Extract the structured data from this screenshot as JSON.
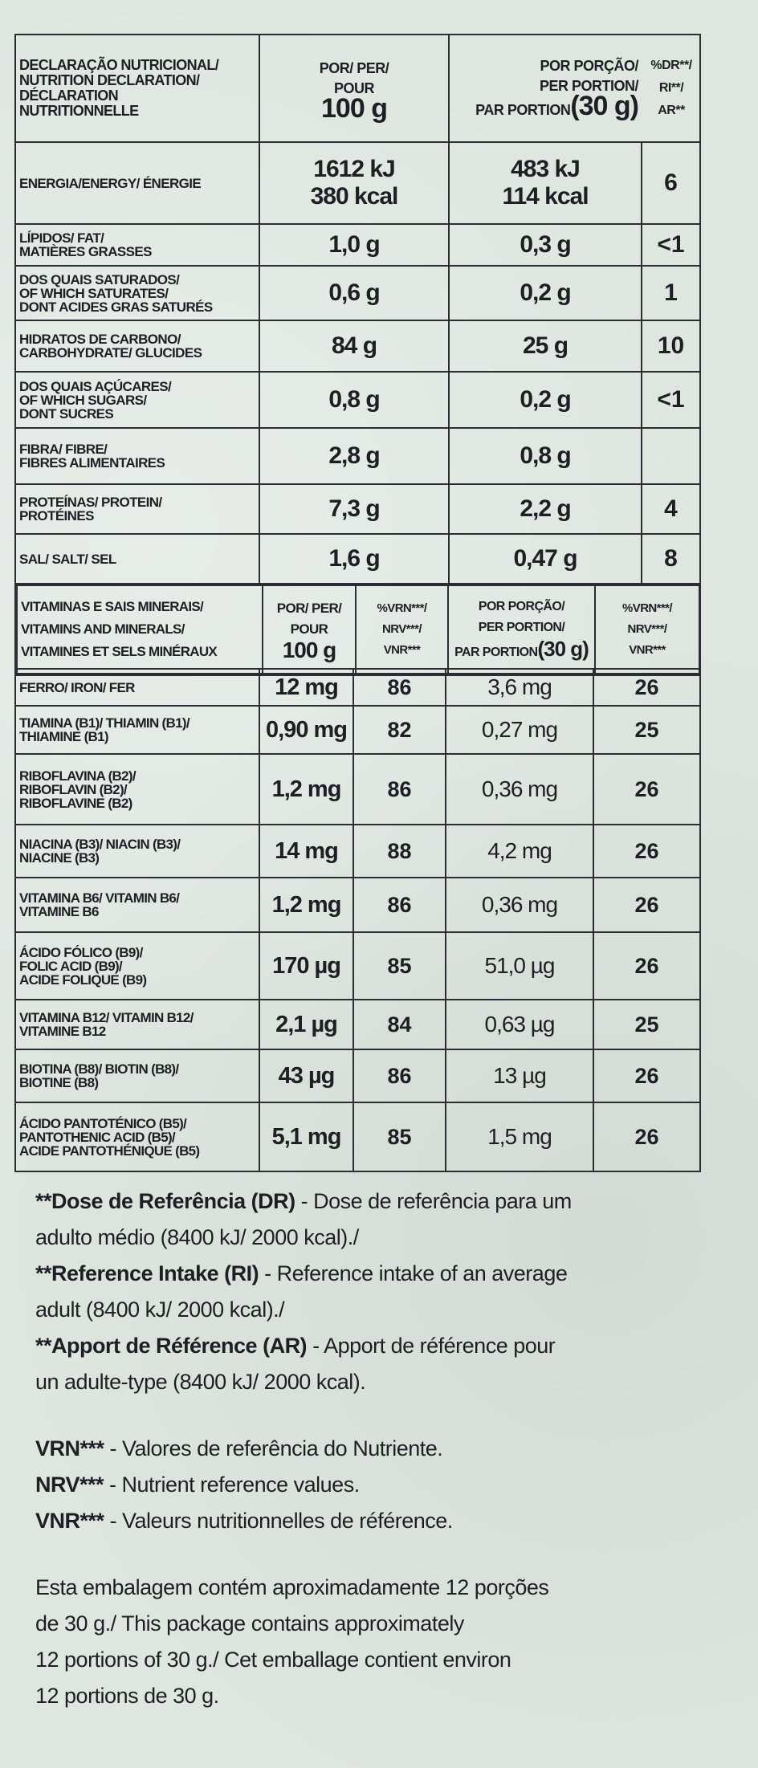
{
  "header": {
    "col1_lines": [
      "DECLARAÇÃO NUTRICIONAL/",
      "NUTRITION DECLARATION/",
      "DÉCLARATION",
      "NUTRITIONNELLE"
    ],
    "col2_lines": [
      "POR/ PER/",
      "POUR"
    ],
    "col2_qty": "100 g",
    "col3_lines": [
      "POR PORÇÃO/",
      "PER PORTION/"
    ],
    "col3_par": "PAR PORTION",
    "col3_qty": "(30 g)",
    "col4_lines": [
      "%DR**/",
      "RI**/",
      "AR**"
    ]
  },
  "rows": [
    {
      "name_lines": [
        "ENERGIA/ENERGY/ ÉNERGIE"
      ],
      "per100": [
        "1612 kJ",
        "380 kcal"
      ],
      "portion": [
        "483 kJ",
        "114 kcal"
      ],
      "pct": "6"
    },
    {
      "name_lines": [
        "LÍPIDOS/ FAT/",
        "MATIÈRES GRASSES"
      ],
      "per100": [
        "1,0 g"
      ],
      "portion": [
        "0,3 g"
      ],
      "pct": "<1"
    },
    {
      "name_lines": [
        "DOS QUAIS SATURADOS/",
        "OF WHICH SATURATES/",
        "DONT ACIDES GRAS SATURÉS"
      ],
      "per100": [
        "0,6 g"
      ],
      "portion": [
        "0,2 g"
      ],
      "pct": "1"
    },
    {
      "name_lines": [
        "HIDRATOS DE CARBONO/",
        "CARBOHYDRATE/ GLUCIDES"
      ],
      "per100": [
        "84 g"
      ],
      "portion": [
        "25 g"
      ],
      "pct": "10"
    },
    {
      "name_lines": [
        "DOS QUAIS AÇÚCARES/",
        "OF WHICH SUGARS/",
        "DONT SUCRES"
      ],
      "per100": [
        "0,8 g"
      ],
      "portion": [
        "0,2 g"
      ],
      "pct": "<1"
    },
    {
      "name_lines": [
        "FIBRA/ FIBRE/",
        "FIBRES ALIMENTAIRES"
      ],
      "per100": [
        "2,8 g"
      ],
      "portion": [
        "0,8 g"
      ],
      "pct": ""
    },
    {
      "name_lines": [
        "PROTEÍNAS/ PROTEIN/",
        "PROTÉINES"
      ],
      "per100": [
        "7,3 g"
      ],
      "portion": [
        "2,2 g"
      ],
      "pct": "4"
    },
    {
      "name_lines": [
        "SAL/ SALT/ SEL"
      ],
      "per100": [
        "1,6 g"
      ],
      "portion": [
        "0,47 g"
      ],
      "pct": "8"
    }
  ],
  "vit_header": {
    "name_lines": [
      "VITAMINAS E SAIS MINERAIS/",
      "VITAMINS AND MINERALS/",
      "VITAMINES ET SELS MINÉRAUX"
    ],
    "per_lines": [
      "POR/ PER/",
      "POUR"
    ],
    "per_qty": "100 g",
    "vrn_lines": [
      "%VRN***/",
      "NRV***/",
      "VNR***"
    ],
    "portion_lines": [
      "POR PORÇÃO/",
      "PER PORTION/"
    ],
    "portion_par": "PAR PORTION",
    "portion_qty": "(30 g)",
    "vrn2_lines": [
      "%VRN***/",
      "NRV***/",
      "VNR***"
    ]
  },
  "vitamins": [
    {
      "name_lines": [
        "FERRO/ IRON/ FER"
      ],
      "per100": "12 mg",
      "nrv": "86",
      "portion": "3,6 mg",
      "nrv2": "26"
    },
    {
      "name_lines": [
        "TIAMINA (B1)/ THIAMIN (B1)/",
        "THIAMINE (B1)"
      ],
      "per100": "0,90 mg",
      "nrv": "82",
      "portion": "0,27 mg",
      "nrv2": "25"
    },
    {
      "name_lines": [
        "RIBOFLAVINA (B2)/",
        "RIBOFLAVIN (B2)/",
        "RIBOFLAVINE (B2)"
      ],
      "per100": "1,2 mg",
      "nrv": "86",
      "portion": "0,36 mg",
      "nrv2": "26"
    },
    {
      "name_lines": [
        "NIACINA (B3)/ NIACIN (B3)/",
        "NIACINE (B3)"
      ],
      "per100": "14 mg",
      "nrv": "88",
      "portion": "4,2 mg",
      "nrv2": "26"
    },
    {
      "name_lines": [
        "VITAMINA B6/ VITAMIN B6/",
        "VITAMINE B6"
      ],
      "per100": "1,2 mg",
      "nrv": "86",
      "portion": "0,36 mg",
      "nrv2": "26"
    },
    {
      "name_lines": [
        "ÁCIDO FÓLICO (B9)/",
        "FOLIC ACID (B9)/",
        "ACIDE FOLIQUE (B9)"
      ],
      "per100": "170 µg",
      "nrv": "85",
      "portion": "51,0 µg",
      "nrv2": "26"
    },
    {
      "name_lines": [
        "VITAMINA B12/ VITAMIN B12/",
        "VITAMINE B12"
      ],
      "per100": "2,1 µg",
      "nrv": "84",
      "portion": "0,63 µg",
      "nrv2": "25"
    },
    {
      "name_lines": [
        "BIOTINA (B8)/ BIOTIN (B8)/",
        "BIOTINE (B8)"
      ],
      "per100": "43 µg",
      "nrv": "86",
      "portion": "13 µg",
      "nrv2": "26"
    },
    {
      "name_lines": [
        "ÁCIDO PANTOTÉNICO (B5)/",
        "PANTOTHENIC ACID (B5)/",
        "ACIDE PANTOTHÉNIQUE (B5)"
      ],
      "per100": "5,1 mg",
      "nrv": "85",
      "portion": "1,5 mg",
      "nrv2": "26"
    }
  ],
  "notes": {
    "dr_bold": "**Dose de Referência (DR)",
    "dr_text": " - Dose de referência para um",
    "dr_text2": "adulto médio (8400 kJ/ 2000 kcal)./",
    "ri_bold": "**Reference Intake (RI)",
    "ri_text": " - Reference intake of an average",
    "ri_text2": "adult (8400 kJ/ 2000 kcal)./",
    "ar_bold": "**Apport de Référence (AR)",
    "ar_text": " - Apport de référence pour",
    "ar_text2": "un adulte-type (8400 kJ/ 2000 kcal).",
    "vrn_bold": "VRN***",
    "vrn_text": " - Valores de referência do Nutriente.",
    "nrv_bold": "NRV***",
    "nrv_text": " - Nutrient reference values.",
    "vnr_bold": "VNR***",
    "vnr_text": " - Valeurs nutritionnelles de référence.",
    "pkg_lines": [
      "Esta embalagem contém aproximadamente 12 porções",
      "de 30 g./ This package contains approximately",
      "12 portions of 30 g./ Cet emballage contient environ",
      "12 portions de 30 g."
    ]
  }
}
